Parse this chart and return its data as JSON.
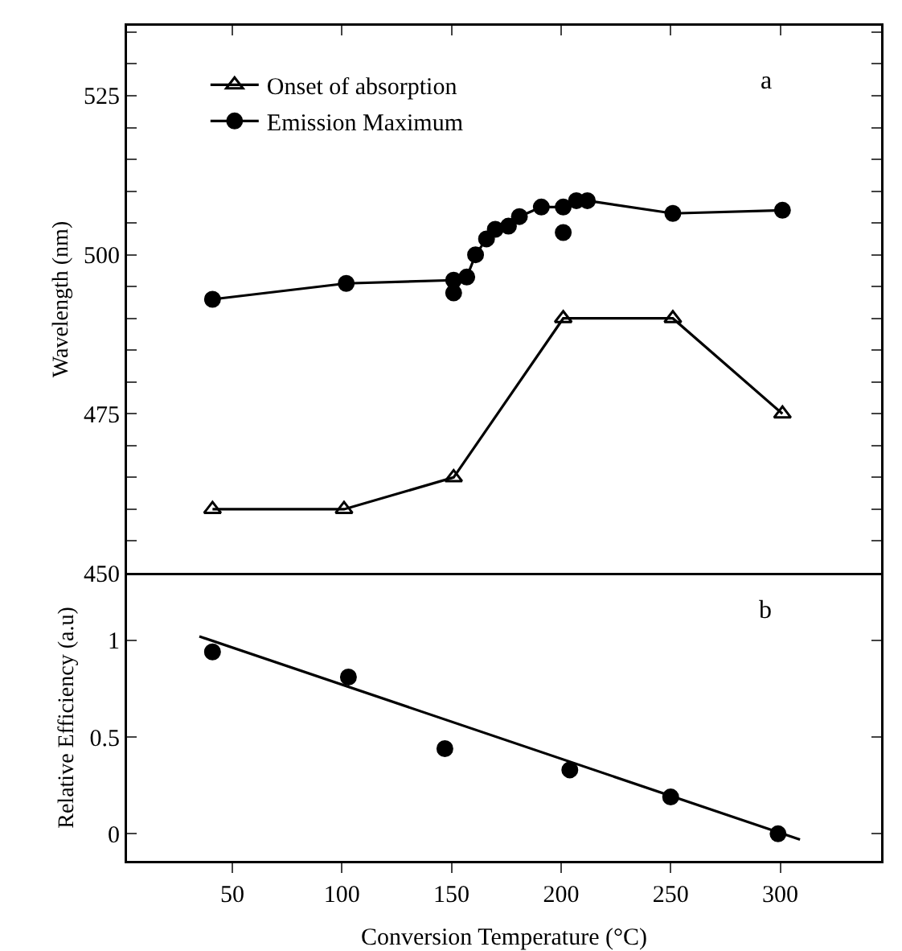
{
  "chart_data": [
    {
      "type": "line",
      "ylabel": "Wavelength (nm)",
      "annotations": [
        "a"
      ],
      "legend": "top left",
      "grid": false,
      "tick_labels": "y",
      "xlim": [
        2,
        346
      ],
      "ylim": [
        450,
        536
      ],
      "xticks": [
        {
          "value": 50,
          "label": null
        },
        {
          "value": 100,
          "label": null
        },
        {
          "value": 150,
          "label": null
        },
        {
          "value": 200,
          "label": null
        },
        {
          "value": 250,
          "label": null
        },
        {
          "value": 300,
          "label": null
        }
      ],
      "yticks": [
        450,
        {
          "value": 455,
          "label": null
        },
        {
          "value": 460,
          "label": null
        },
        {
          "value": 465,
          "label": null
        },
        {
          "value": 470,
          "label": null
        },
        475,
        {
          "value": 480,
          "label": null
        },
        {
          "value": 485,
          "label": null
        },
        {
          "value": 490,
          "label": null
        },
        {
          "value": 495,
          "label": null
        },
        500,
        {
          "value": 505,
          "label": null
        },
        {
          "value": 510,
          "label": null
        },
        {
          "value": 515,
          "label": null
        },
        {
          "value": 520,
          "label": null
        },
        525,
        {
          "value": 530,
          "label": null
        },
        {
          "value": 535,
          "label": null
        }
      ],
      "series": [
        {
          "name": "Onset of absorption",
          "marker": "triangle",
          "color": "#000000",
          "x": [
            41,
            101,
            151,
            201,
            251,
            301
          ],
          "values": [
            460,
            460,
            465,
            490,
            490,
            475
          ]
        },
        {
          "name": "Emission Maximum",
          "marker": "circle",
          "color": "#000000",
          "x": [
            41,
            102,
            151,
            157,
            161,
            166,
            170,
            176,
            181,
            191,
            201,
            207,
            212,
            251,
            301
          ],
          "values": [
            493,
            495.5,
            496,
            496.5,
            500,
            502.5,
            504,
            504.5,
            506,
            507.5,
            507.5,
            508.5,
            508.5,
            506.5,
            507
          ]
        },
        {
          "type": "scatter",
          "marker": "circle",
          "color": "#000000",
          "x": [
            151,
            201
          ],
          "values": [
            494,
            503.5
          ]
        }
      ]
    },
    {
      "type": "scatter",
      "xlabel": "Conversion Temperature (°C)",
      "ylabel": "Relative Efficiency (a.u)",
      "annotations": [
        "b"
      ],
      "grid": false,
      "xlim": [
        2,
        346
      ],
      "ylim": [
        -0.14,
        1.34
      ],
      "xticks": [
        50,
        100,
        150,
        200,
        250,
        300
      ],
      "yticks": [
        0,
        0.5,
        1
      ],
      "series": [
        {
          "marker": "circle",
          "color": "#000000",
          "x": [
            41,
            103,
            147,
            204,
            250,
            299
          ],
          "values": [
            0.94,
            0.81,
            0.44,
            0.33,
            0.19,
            0
          ]
        },
        {
          "type": "line",
          "marker": "none",
          "color": "#000000",
          "x": [
            35,
            309
          ],
          "values": [
            1.02,
            -0.03
          ]
        }
      ]
    }
  ]
}
